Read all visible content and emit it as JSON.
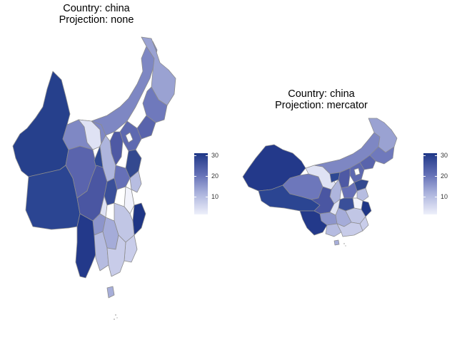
{
  "maps": [
    {
      "title_line1": "Country: china",
      "title_line2": "Projection: none"
    },
    {
      "title_line1": "Country: china",
      "title_line2": "Projection: mercator"
    }
  ],
  "legend": {
    "ticks": [
      "10",
      "20",
      "30"
    ],
    "color_low": "#eef0fa",
    "color_high": "#1f3787"
  },
  "colors": {
    "border": "#8c8c8c",
    "fill_low": "#eef0fa",
    "fill_high": "#1f3787"
  }
}
